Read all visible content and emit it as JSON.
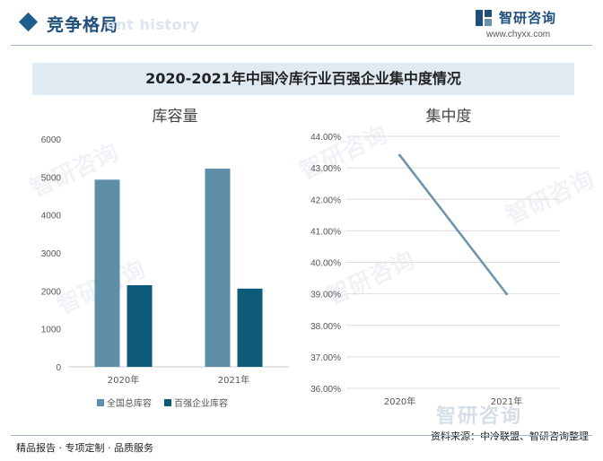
{
  "header": {
    "section_title": "竞争格局",
    "watermark_text": "ent history",
    "logo_name": "智研咨询",
    "logo_url": "www.chyxx.com"
  },
  "banner_title": "2020-2021年中国冷库行业百强企业集中度情况",
  "watermark": "智研咨询",
  "colors": {
    "series_total": "#5f8ea8",
    "series_top100": "#0d5b78",
    "line": "#6b93ad",
    "accent": "#1e4f7a"
  },
  "chart_data": [
    {
      "type": "bar",
      "title": "库容量",
      "categories": [
        "2020年",
        "2021年"
      ],
      "series": [
        {
          "name": "全国总库容",
          "values": [
            4930,
            5220
          ]
        },
        {
          "name": "百强企业库容",
          "values": [
            2150,
            2060
          ]
        }
      ],
      "ylim": [
        0,
        6000
      ],
      "yticks": [
        "0",
        "1000",
        "2000",
        "3000",
        "4000",
        "5000",
        "6000"
      ],
      "legend": "bottom",
      "grid": false
    },
    {
      "type": "line",
      "title": "集中度",
      "categories": [
        "2020年",
        "2021年"
      ],
      "series": [
        {
          "values": [
            43.4,
            39.0
          ]
        }
      ],
      "ylim": [
        36,
        44
      ],
      "yticks": [
        "36.00%",
        "37.00%",
        "38.00%",
        "39.00%",
        "40.00%",
        "41.00%",
        "42.00%",
        "43.00%",
        "44.00%"
      ],
      "grid": true
    }
  ],
  "footer": {
    "left": "精品报告 · 专项定制 · 品质服务",
    "source": "资料来源：中冷联盟、智研咨询整理"
  }
}
